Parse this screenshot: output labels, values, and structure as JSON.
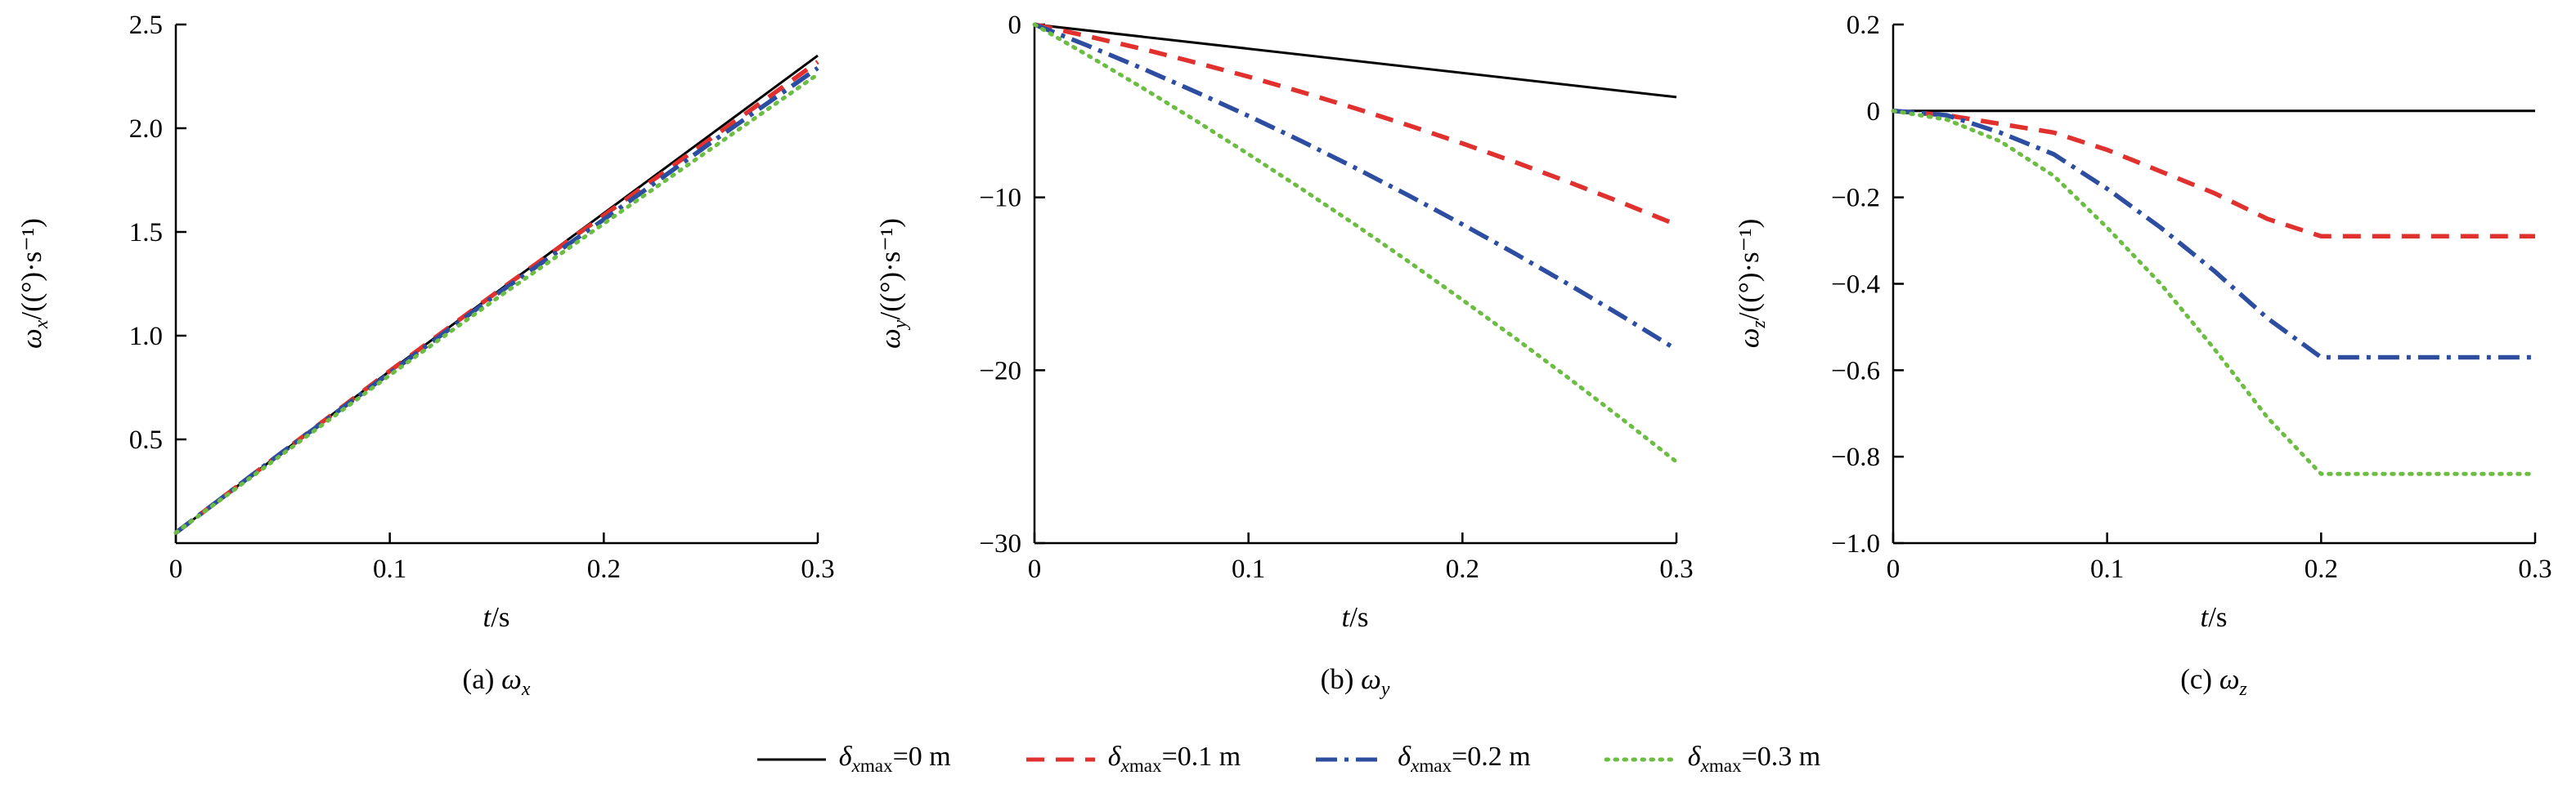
{
  "figure": {
    "background": "#ffffff"
  },
  "colors": {
    "black": "#000000",
    "red": "#e0312e",
    "blue": "#2c4da0",
    "green": "#6dbd45"
  },
  "legend": {
    "items": [
      {
        "symbol": "δ",
        "sub_i": "x",
        "sub_rest": "max",
        "value": "=0 m",
        "color": "#000000",
        "dash": "solid"
      },
      {
        "symbol": "δ",
        "sub_i": "x",
        "sub_rest": "max",
        "value": "=0.1 m",
        "color": "#e0312e",
        "dash": "dashed"
      },
      {
        "symbol": "δ",
        "sub_i": "x",
        "sub_rest": "max",
        "value": "=0.2 m",
        "color": "#2c4da0",
        "dash": "dashdot"
      },
      {
        "symbol": "δ",
        "sub_i": "x",
        "sub_rest": "max",
        "value": "=0.3 m",
        "color": "#6dbd45",
        "dash": "dotted"
      }
    ]
  },
  "chart_data": [
    {
      "type": "line",
      "name": "omega-x",
      "ylabel": {
        "sym": "ω",
        "sub": "x",
        "rest": "/((°)·s⁻¹)"
      },
      "xlabel": {
        "i": "t",
        "rest": "/s"
      },
      "caption": {
        "prefix": "(a) ",
        "sym": "ω",
        "sub": "x"
      },
      "xlim": [
        0,
        0.3
      ],
      "ylim": [
        0,
        2.5
      ],
      "xticks": [
        0,
        0.1,
        0.2,
        0.3
      ],
      "xtick_labels": [
        "0",
        "0.1",
        "0.2",
        "0.3"
      ],
      "yticks": [
        0.5,
        1.0,
        1.5,
        2.0,
        2.5
      ],
      "ytick_labels": [
        "0.5",
        "1.0",
        "1.5",
        "2.0",
        "2.5"
      ],
      "grid": false,
      "legend_position": "figure-bottom",
      "series": [
        {
          "name": "δxmax=0 m",
          "color": "#000000",
          "dash": "solid",
          "width": 3,
          "x": [
            0,
            0.05,
            0.1,
            0.15,
            0.2,
            0.25,
            0.3
          ],
          "y": [
            0.05,
            0.44,
            0.83,
            1.21,
            1.59,
            1.97,
            2.35
          ]
        },
        {
          "name": "δxmax=0.1 m",
          "color": "#e0312e",
          "dash": "dashed",
          "width": 5.5,
          "x": [
            0,
            0.05,
            0.1,
            0.15,
            0.2,
            0.25,
            0.3
          ],
          "y": [
            0.05,
            0.44,
            0.83,
            1.21,
            1.58,
            1.95,
            2.32
          ]
        },
        {
          "name": "δxmax=0.2 m",
          "color": "#2c4da0",
          "dash": "dashdot",
          "width": 5.5,
          "x": [
            0,
            0.05,
            0.1,
            0.15,
            0.2,
            0.25,
            0.3
          ],
          "y": [
            0.05,
            0.44,
            0.82,
            1.2,
            1.56,
            1.93,
            2.29
          ]
        },
        {
          "name": "δxmax=0.3 m",
          "color": "#6dbd45",
          "dash": "dotted",
          "width": 5,
          "x": [
            0,
            0.05,
            0.1,
            0.15,
            0.2,
            0.25,
            0.3
          ],
          "y": [
            0.05,
            0.43,
            0.81,
            1.18,
            1.54,
            1.9,
            2.26
          ]
        }
      ]
    },
    {
      "type": "line",
      "name": "omega-y",
      "ylabel": {
        "sym": "ω",
        "sub": "y",
        "rest": "/((°)·s⁻¹)"
      },
      "xlabel": {
        "i": "t",
        "rest": "/s"
      },
      "caption": {
        "prefix": "(b) ",
        "sym": "ω",
        "sub": "y"
      },
      "xlim": [
        0,
        0.3
      ],
      "ylim": [
        -30,
        0
      ],
      "xticks": [
        0,
        0.1,
        0.2,
        0.3
      ],
      "xtick_labels": [
        "0",
        "0.1",
        "0.2",
        "0.3"
      ],
      "yticks": [
        0,
        -10,
        -20,
        -30
      ],
      "ytick_labels": [
        "0",
        "−10",
        "−20",
        "−30"
      ],
      "grid": false,
      "legend_position": "figure-bottom",
      "series": [
        {
          "name": "δxmax=0 m",
          "color": "#000000",
          "dash": "solid",
          "width": 3,
          "x": [
            0,
            0.3
          ],
          "y": [
            0,
            -4.2
          ]
        },
        {
          "name": "δxmax=0.1 m",
          "color": "#e0312e",
          "dash": "dashed",
          "width": 5.5,
          "x": [
            0,
            0.025,
            0.05,
            0.075,
            0.1,
            0.125,
            0.15,
            0.175,
            0.2,
            0.225,
            0.25,
            0.275,
            0.3
          ],
          "y": [
            0,
            -0.68,
            -1.4,
            -2.19,
            -3.02,
            -3.91,
            -4.85,
            -5.84,
            -6.88,
            -7.98,
            -9.13,
            -10.33,
            -11.58
          ]
        },
        {
          "name": "δxmax=0.2 m",
          "color": "#2c4da0",
          "dash": "dashdot",
          "width": 5.5,
          "x": [
            0,
            0.025,
            0.05,
            0.075,
            0.1,
            0.125,
            0.15,
            0.175,
            0.2,
            0.225,
            0.25,
            0.275,
            0.3
          ],
          "y": [
            0,
            -1.23,
            -2.52,
            -3.88,
            -5.29,
            -6.76,
            -8.3,
            -9.9,
            -11.56,
            -13.28,
            -15.06,
            -16.9,
            -18.8
          ]
        },
        {
          "name": "δxmax=0.3 m",
          "color": "#6dbd45",
          "dash": "dotted",
          "width": 5,
          "x": [
            0,
            0.025,
            0.05,
            0.075,
            0.1,
            0.125,
            0.15,
            0.175,
            0.2,
            0.225,
            0.25,
            0.275,
            0.3
          ],
          "y": [
            0,
            -1.79,
            -3.63,
            -5.53,
            -7.5,
            -9.52,
            -11.59,
            -13.73,
            -15.93,
            -18.18,
            -20.49,
            -22.86,
            -25.3
          ]
        }
      ]
    },
    {
      "type": "line",
      "name": "omega-z",
      "ylabel": {
        "sym": "ω",
        "sub": "z",
        "rest": "/((°)·s⁻¹)"
      },
      "xlabel": {
        "i": "t",
        "rest": "/s"
      },
      "caption": {
        "prefix": "(c) ",
        "sym": "ω",
        "sub": "z"
      },
      "xlim": [
        0,
        0.3
      ],
      "ylim": [
        -1.0,
        0.2
      ],
      "xticks": [
        0,
        0.1,
        0.2,
        0.3
      ],
      "xtick_labels": [
        "0",
        "0.1",
        "0.2",
        "0.3"
      ],
      "yticks": [
        0.2,
        0,
        -0.2,
        -0.4,
        -0.6,
        -0.8,
        -1.0
      ],
      "ytick_labels": [
        "0.2",
        "0",
        "−0.2",
        "−0.4",
        "−0.6",
        "−0.8",
        "−1.0"
      ],
      "grid": false,
      "legend_position": "figure-bottom",
      "series": [
        {
          "name": "δxmax=0 m",
          "color": "#000000",
          "dash": "solid",
          "width": 3,
          "x": [
            0,
            0.3
          ],
          "y": [
            0,
            0
          ]
        },
        {
          "name": "δxmax=0.1 m",
          "color": "#e0312e",
          "dash": "dashed",
          "width": 5.5,
          "x": [
            0,
            0.025,
            0.05,
            0.075,
            0.1,
            0.125,
            0.15,
            0.175,
            0.2,
            0.225,
            0.25,
            0.275,
            0.3
          ],
          "y": [
            0,
            -0.01,
            -0.03,
            -0.05,
            -0.09,
            -0.14,
            -0.19,
            -0.25,
            -0.29,
            -0.29,
            -0.29,
            -0.29,
            -0.29
          ]
        },
        {
          "name": "δxmax=0.2 m",
          "color": "#2c4da0",
          "dash": "dashdot",
          "width": 5.5,
          "x": [
            0,
            0.025,
            0.05,
            0.075,
            0.1,
            0.125,
            0.15,
            0.175,
            0.2,
            0.225,
            0.25,
            0.275,
            0.3
          ],
          "y": [
            0,
            -0.01,
            -0.05,
            -0.1,
            -0.18,
            -0.27,
            -0.37,
            -0.48,
            -0.57,
            -0.57,
            -0.57,
            -0.57,
            -0.57
          ]
        },
        {
          "name": "δxmax=0.3 m",
          "color": "#6dbd45",
          "dash": "dotted",
          "width": 5,
          "x": [
            0,
            0.025,
            0.05,
            0.075,
            0.1,
            0.125,
            0.15,
            0.175,
            0.2,
            0.225,
            0.25,
            0.275,
            0.3
          ],
          "y": [
            0,
            -0.02,
            -0.07,
            -0.15,
            -0.27,
            -0.4,
            -0.55,
            -0.71,
            -0.84,
            -0.84,
            -0.84,
            -0.84,
            -0.84
          ]
        }
      ]
    }
  ]
}
